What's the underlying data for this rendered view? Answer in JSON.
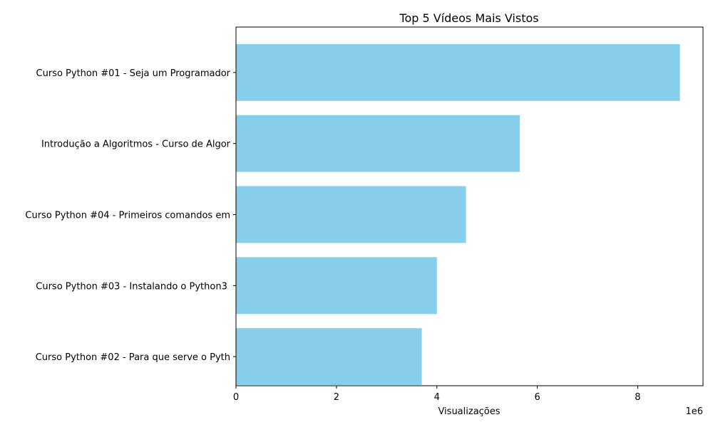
{
  "chart_data": {
    "type": "bar",
    "orientation": "horizontal",
    "title": "Top 5 Vídeos Mais Vistos",
    "xlabel": "Visualizações",
    "ylabel": "",
    "x_offset_label": "1e6",
    "xlim": [
      0,
      9300000
    ],
    "x_ticks": [
      0,
      2000000,
      4000000,
      6000000,
      8000000
    ],
    "x_tick_labels": [
      "0",
      "2",
      "4",
      "6",
      "8"
    ],
    "bar_color": "#87ceeb",
    "categories": [
      "Curso Python #01 - Seja um Programador",
      "Introdução a Algoritmos - Curso de Algor",
      "Curso Python #04 - Primeiros comandos em",
      "Curso Python #03 - Instalando o Python3 ",
      "Curso Python #02 - Para que serve o Pyth"
    ],
    "values": [
      8840000,
      5650000,
      4580000,
      4000000,
      3700000
    ],
    "grid": false
  }
}
